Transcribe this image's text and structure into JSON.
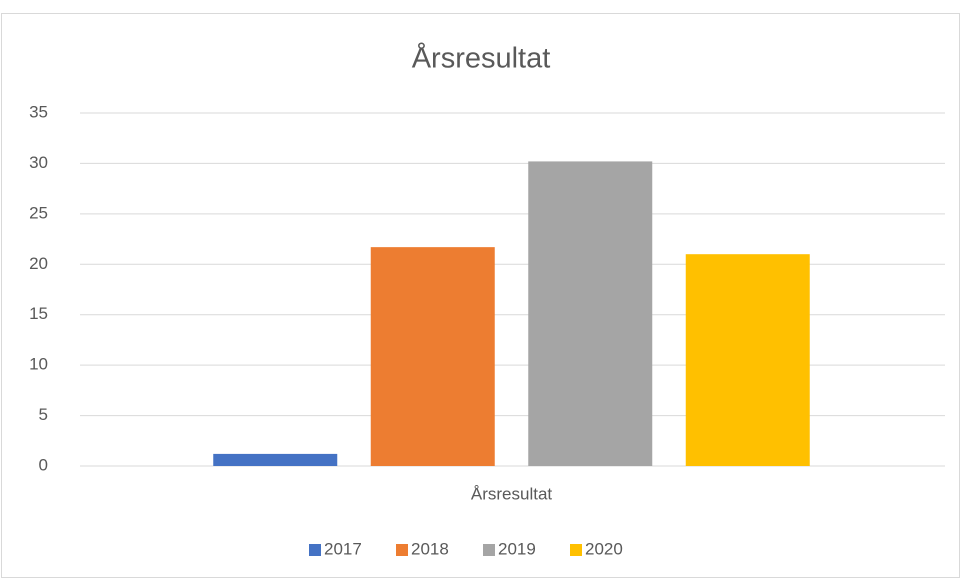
{
  "chart_data": {
    "type": "bar",
    "title": "Årsresultat",
    "categories": [
      "Årsresultat"
    ],
    "series": [
      {
        "name": "2017",
        "color": "#4472c4",
        "values": [
          1.2
        ]
      },
      {
        "name": "2018",
        "color": "#ed7d31",
        "values": [
          21.7
        ]
      },
      {
        "name": "2019",
        "color": "#a5a5a5",
        "values": [
          30.2
        ]
      },
      {
        "name": "2020",
        "color": "#ffc000",
        "values": [
          21.0
        ]
      }
    ],
    "ylim": [
      0,
      35
    ],
    "yticks": [
      0,
      5,
      10,
      15,
      20,
      25,
      30,
      35
    ],
    "grid": true,
    "legend": "bottom"
  }
}
